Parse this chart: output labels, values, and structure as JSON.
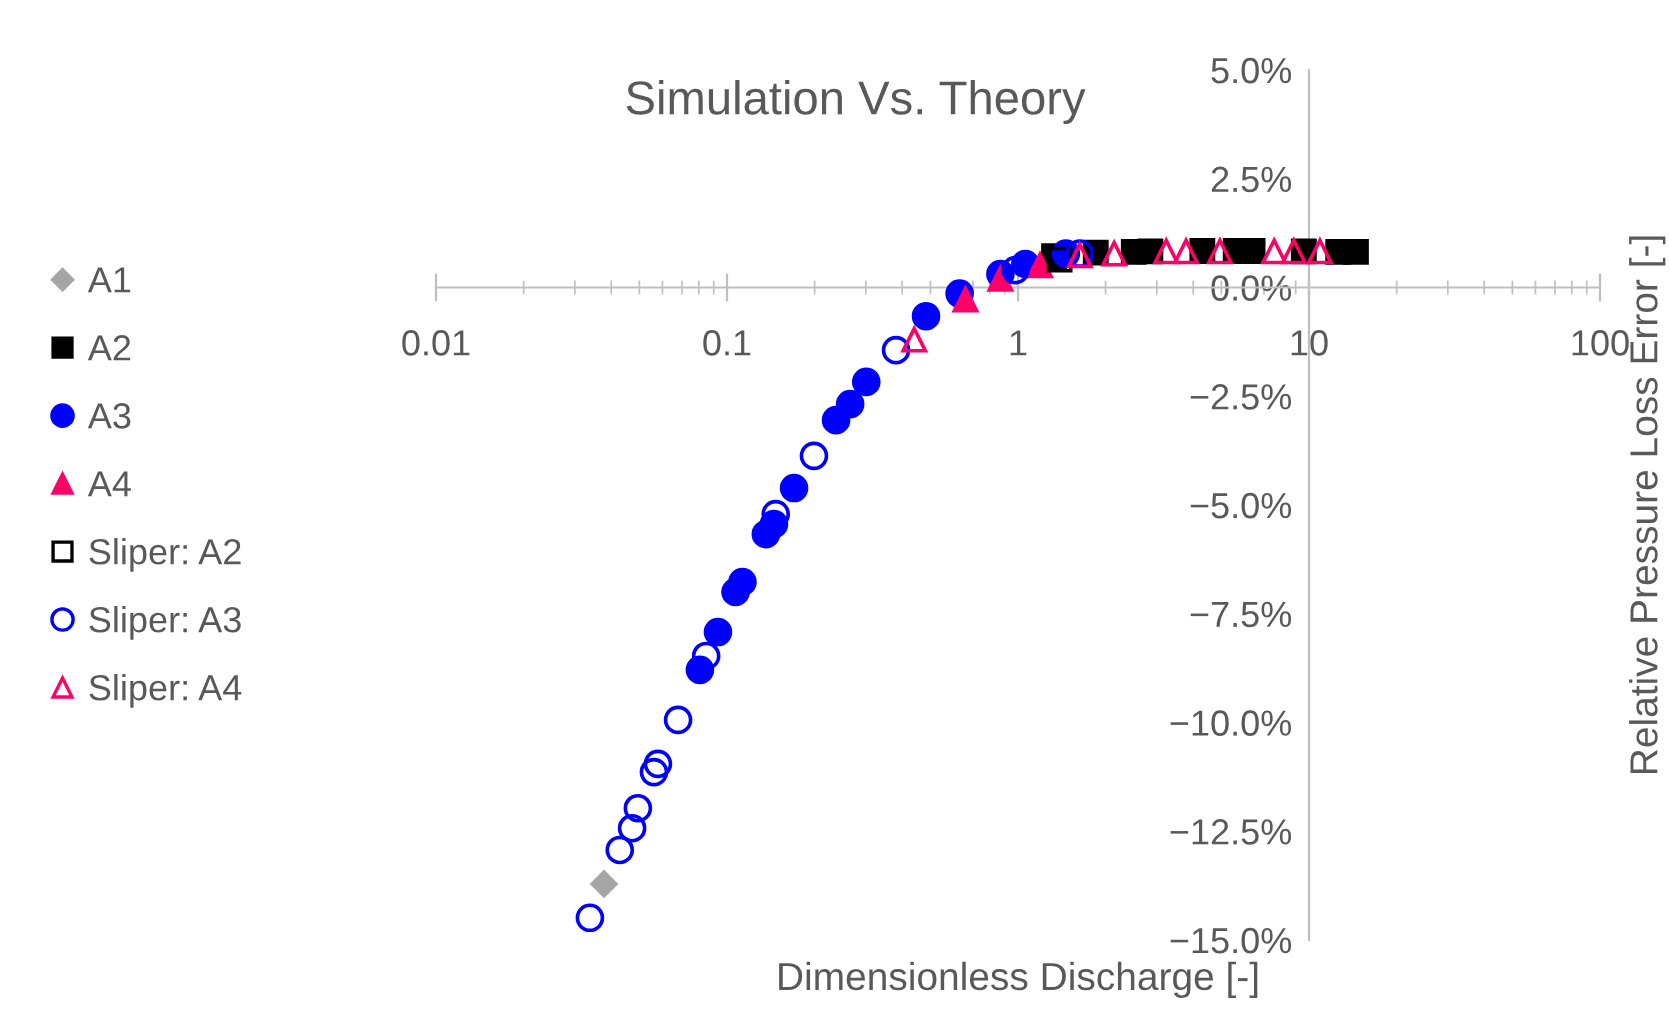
{
  "chart_data": {
    "type": "scatter",
    "title": "Simulation Vs. Theory",
    "xlabel": "Dimensionless Discharge [-]",
    "ylabel": "Relative Pressure Loss Error [-]",
    "log": "x",
    "xlim": [
      0.01,
      100
    ],
    "ylim": [
      -15,
      5
    ],
    "xticks": [
      0.01,
      0.1,
      1,
      10,
      100
    ],
    "yticks": [
      {
        "value": -15,
        "label": "−15.0%"
      },
      {
        "value": -12.5,
        "label": "−12.5%"
      },
      {
        "value": -10,
        "label": "−10.0%"
      },
      {
        "value": -7.5,
        "label": "−7.5%"
      },
      {
        "value": -5,
        "label": "−5.0%"
      },
      {
        "value": -2.5,
        "label": "−2.5%"
      },
      {
        "value": 0,
        "label": "0.0%"
      },
      {
        "value": 2.5,
        "label": "2.5%"
      },
      {
        "value": 5,
        "label": "5.0%"
      }
    ],
    "grid": false,
    "legend": "left",
    "series": [
      {
        "name": "A1",
        "color": "#a6a6a6",
        "marker": "diamond",
        "x": [
          0.0378
        ],
        "values": [
          -13.71
        ]
      },
      {
        "name": "A2",
        "color": "#000000",
        "marker": "square",
        "x": [
          1.33,
          1.85,
          2.5,
          2.85,
          4.3,
          5.6,
          6.4,
          9.6,
          12.6,
          14.5
        ],
        "values": [
          0.72,
          0.8,
          0.82,
          0.83,
          0.84,
          0.84,
          0.84,
          0.83,
          0.82,
          0.82
        ]
      },
      {
        "name": "A3",
        "color": "#0000ff",
        "marker": "circle",
        "x": [
          0.0807,
          0.0931,
          0.107,
          0.113,
          0.136,
          0.145,
          0.17,
          0.237,
          0.265,
          0.301,
          0.483,
          0.63,
          0.87,
          1.06,
          1.46
        ],
        "values": [
          -8.79,
          -7.92,
          -7.0,
          -6.77,
          -5.67,
          -5.44,
          -4.61,
          -3.05,
          -2.68,
          -2.17,
          -0.66,
          -0.14,
          0.31,
          0.54,
          0.78
        ]
      },
      {
        "name": "A4",
        "color": "#ff0066",
        "marker": "triangle",
        "x": [
          0.66,
          0.87,
          1.19
        ],
        "values": [
          -0.28,
          0.2,
          0.51
        ]
      },
      {
        "name": "Sliper: A2",
        "color": "#000000",
        "marker": "square open",
        "x": [
          1.39
        ],
        "values": [
          0.64
        ]
      },
      {
        "name": "Sliper: A3",
        "color": "#0000ff",
        "marker": "circle open",
        "x": [
          0.0338,
          0.0428,
          0.0472,
          0.0494,
          0.0561,
          0.0579,
          0.0679,
          0.0848,
          0.147,
          0.199,
          0.381,
          0.98,
          1.63
        ],
        "values": [
          -14.49,
          -12.93,
          -12.43,
          -11.97,
          -11.14,
          -10.95,
          -9.94,
          -8.47,
          -5.21,
          -3.87,
          -1.44,
          0.4,
          0.78
        ]
      },
      {
        "name": "Sliper: A4",
        "color": "#ff0066",
        "marker": "triangle open",
        "x": [
          0.44,
          1.63,
          2.14,
          3.23,
          3.78,
          4.94,
          7.59,
          8.87,
          10.9
        ],
        "values": [
          -1.2,
          0.74,
          0.78,
          0.83,
          0.83,
          0.83,
          0.83,
          0.83,
          0.83
        ]
      }
    ]
  }
}
